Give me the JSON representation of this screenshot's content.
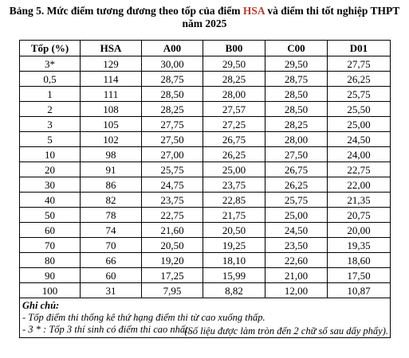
{
  "title": {
    "prefix": "Bảng 5. Mức điểm tương đương theo tốp của điểm ",
    "highlight": "HSA",
    "suffix": " và điểm thi tốt nghiệp THPT",
    "line2": "năm 2025"
  },
  "table": {
    "headers": [
      "Tốp (%)",
      "HSA",
      "A00",
      "B00",
      "C00",
      "D01"
    ],
    "rows": [
      [
        "3*",
        "129",
        "30,00",
        "29,50",
        "29,50",
        "27,75"
      ],
      [
        "0,5",
        "114",
        "28,75",
        "28,25",
        "28,75",
        "26,25"
      ],
      [
        "1",
        "111",
        "28,50",
        "28,00",
        "28,50",
        "25,75"
      ],
      [
        "2",
        "108",
        "28,25",
        "27,57",
        "28,50",
        "25,50"
      ],
      [
        "3",
        "105",
        "27,75",
        "27,25",
        "28,25",
        "25,00"
      ],
      [
        "5",
        "102",
        "27,50",
        "26,75",
        "28,00",
        "24,50"
      ],
      [
        "10",
        "98",
        "27,00",
        "26,25",
        "27,50",
        "24,00"
      ],
      [
        "20",
        "91",
        "25,75",
        "25,00",
        "26,75",
        "22,75"
      ],
      [
        "30",
        "86",
        "24,75",
        "23,75",
        "26,25",
        "22,00"
      ],
      [
        "40",
        "82",
        "23,75",
        "22,85",
        "25,75",
        "21,35"
      ],
      [
        "50",
        "78",
        "22,75",
        "21,75",
        "25,00",
        "20,75"
      ],
      [
        "60",
        "74",
        "21,60",
        "20,50",
        "24,50",
        "20,00"
      ],
      [
        "70",
        "70",
        "20,50",
        "19,25",
        "23,50",
        "19,35"
      ],
      [
        "80",
        "66",
        "19,20",
        "18,10",
        "22,60",
        "18,60"
      ],
      [
        "90",
        "60",
        "17,25",
        "15,99",
        "21,00",
        "17,50"
      ],
      [
        "100",
        "31",
        "7,95",
        "8,82",
        "12,00",
        "10,87"
      ]
    ]
  },
  "notes": {
    "heading": "Ghi chú:",
    "line1": "- Tốp điểm thi thống kê thứ hạng điểm thi từ cao xuống thấp.",
    "line2": "- 3 * : Tốp 3 thí sinh có điểm thi cao nhất."
  },
  "source": "(Số liệu được làm tròn đến 2 chữ số sau dấy phẩy)."
}
